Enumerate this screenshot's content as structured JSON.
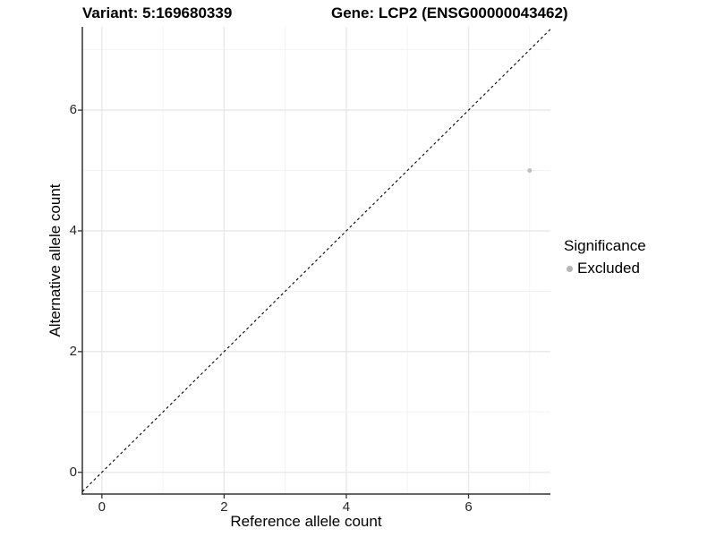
{
  "header": {
    "variant_title": "Variant: 5:169680339",
    "gene_title": "Gene: LCP2 (ENSG00000043462)"
  },
  "chart_data": {
    "type": "scatter",
    "title": "Variant: 5:169680339    Gene: LCP2 (ENSG00000043462)",
    "xlabel": "Reference allele count",
    "ylabel": "Alternative allele count",
    "xlim": [
      -0.32,
      7.34
    ],
    "ylim": [
      -0.36,
      7.38
    ],
    "x_ticks": [
      0,
      2,
      4,
      6
    ],
    "y_ticks": [
      0,
      2,
      4,
      6
    ],
    "x_minor_ticks": [
      1,
      3,
      5,
      7
    ],
    "y_minor_ticks": [
      1,
      3,
      5,
      7
    ],
    "grid": true,
    "identity_line": {
      "style": "dashed",
      "from": -0.32,
      "to": 7.34,
      "color": "#000000"
    },
    "series": [
      {
        "name": "Excluded",
        "color": "#bebebe",
        "points": [
          {
            "x": 7,
            "y": 5
          }
        ]
      }
    ],
    "legend": {
      "title": "Significance",
      "position": "right",
      "items": [
        {
          "label": "Excluded",
          "color": "#b5b5b5"
        }
      ]
    },
    "colors": {
      "grid_major": "#e7e7e7",
      "grid_minor": "#f2f2f2",
      "axis_line": "#333333",
      "tick_text": "#262626",
      "point": "#bebebe"
    }
  }
}
